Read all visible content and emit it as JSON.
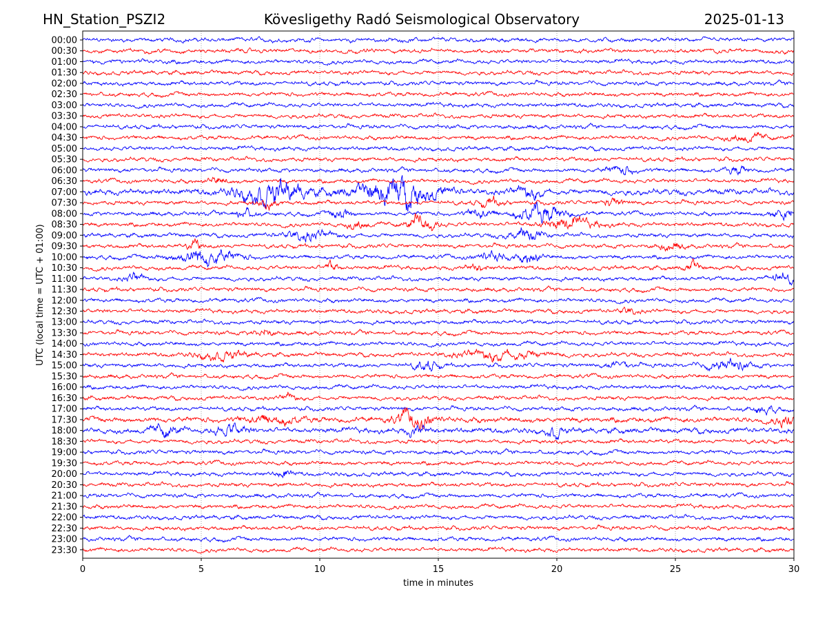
{
  "chart_data": {
    "type": "line",
    "title_left": "HN_Station_PSZI2",
    "title": "Kövesligethy Radó Seismological Observatory",
    "title_right": "2025-01-13",
    "xlabel": "time in minutes",
    "ylabel": "UTC (local time = UTC + 01:00)",
    "xlim": [
      0,
      30
    ],
    "xticks": [
      "0",
      "5",
      "10",
      "15",
      "20",
      "25",
      "30"
    ],
    "grid": "vertical dotted at x ticks",
    "colors": [
      "#0000ff",
      "#ff0000"
    ],
    "traces": [
      {
        "label": "00:00",
        "events": []
      },
      {
        "label": "00:30",
        "events": []
      },
      {
        "label": "01:00",
        "events": []
      },
      {
        "label": "01:30",
        "events": []
      },
      {
        "label": "02:00",
        "events": []
      },
      {
        "label": "02:30",
        "events": []
      },
      {
        "label": "03:00",
        "events": []
      },
      {
        "label": "03:30",
        "events": []
      },
      {
        "label": "04:00",
        "events": []
      },
      {
        "label": "04:30",
        "events": [
          [
            28,
            1.5,
            0.8
          ]
        ]
      },
      {
        "label": "05:00",
        "events": []
      },
      {
        "label": "05:30",
        "events": []
      },
      {
        "label": "06:00",
        "events": [
          [
            22.7,
            1.8,
            0.6
          ],
          [
            27.6,
            1.8,
            0.4
          ]
        ]
      },
      {
        "label": "06:30",
        "events": [
          [
            5.7,
            1.5,
            0.4
          ]
        ]
      },
      {
        "label": "07:00",
        "events": [
          [
            8.0,
            3.5,
            1.5
          ],
          [
            13.3,
            4.5,
            1.6
          ],
          [
            18.8,
            1.8,
            0.6
          ]
        ],
        "base": 1.4
      },
      {
        "label": "07:30",
        "events": [
          [
            7.8,
            2,
            0.4
          ],
          [
            17.2,
            2,
            0.5
          ],
          [
            22.4,
            1.6,
            0.4
          ]
        ]
      },
      {
        "label": "08:00",
        "events": [
          [
            6.8,
            2.2,
            0.4
          ],
          [
            10.9,
            2.5,
            0.4
          ],
          [
            16.7,
            2.2,
            0.5
          ],
          [
            19.3,
            4,
            1.0
          ],
          [
            29.6,
            2.8,
            0.5
          ]
        ]
      },
      {
        "label": "08:30",
        "events": [
          [
            11.6,
            2,
            0.4
          ],
          [
            14.3,
            3.6,
            0.6
          ],
          [
            20.5,
            2.4,
            1.2
          ]
        ]
      },
      {
        "label": "09:00",
        "events": [
          [
            9.5,
            2.3,
            1.0
          ],
          [
            18.6,
            2.8,
            0.7
          ]
        ]
      },
      {
        "label": "09:30",
        "events": [
          [
            4.7,
            2.4,
            0.3
          ],
          [
            24.8,
            1.6,
            0.5
          ]
        ]
      },
      {
        "label": "10:00",
        "events": [
          [
            5.2,
            4,
            1.2
          ],
          [
            17.3,
            2.4,
            0.6
          ],
          [
            18.9,
            2.8,
            0.4
          ]
        ]
      },
      {
        "label": "10:30",
        "events": [
          [
            10.5,
            2.4,
            0.3
          ],
          [
            16.6,
            1.5,
            0.4
          ],
          [
            25.7,
            2.6,
            0.3
          ]
        ]
      },
      {
        "label": "11:00",
        "events": [
          [
            2.2,
            2.2,
            0.4
          ],
          [
            29.5,
            2.2,
            0.6
          ]
        ]
      },
      {
        "label": "11:30",
        "events": []
      },
      {
        "label": "12:00",
        "events": []
      },
      {
        "label": "12:30",
        "events": [
          [
            23,
            1.4,
            0.4
          ]
        ]
      },
      {
        "label": "13:00",
        "events": []
      },
      {
        "label": "13:30",
        "events": [
          [
            7.6,
            1.6,
            0.4
          ]
        ]
      },
      {
        "label": "14:00",
        "events": []
      },
      {
        "label": "14:30",
        "events": [
          [
            5.8,
            1.8,
            1.0
          ],
          [
            17.7,
            2.2,
            1.8
          ]
        ]
      },
      {
        "label": "15:00",
        "events": [
          [
            14.5,
            2.2,
            0.5
          ],
          [
            22.6,
            1.8,
            0.4
          ],
          [
            27.2,
            2.4,
            0.9
          ]
        ]
      },
      {
        "label": "15:30",
        "events": []
      },
      {
        "label": "16:00",
        "events": []
      },
      {
        "label": "16:30",
        "events": [
          [
            8.7,
            1.8,
            0.3
          ]
        ]
      },
      {
        "label": "17:00",
        "events": [
          [
            28.7,
            1.8,
            0.5
          ]
        ]
      },
      {
        "label": "17:30",
        "events": [
          [
            8,
            1.6,
            1.0
          ],
          [
            14,
            2.6,
            0.8
          ],
          [
            29.7,
            2.2,
            0.4
          ]
        ],
        "base": 1.3
      },
      {
        "label": "18:00",
        "events": [
          [
            3.5,
            2,
            0.5
          ],
          [
            6.2,
            2,
            0.6
          ],
          [
            14.1,
            1.8,
            0.4
          ],
          [
            19.9,
            2,
            0.3
          ]
        ],
        "base": 1.3
      },
      {
        "label": "18:30",
        "events": []
      },
      {
        "label": "19:00",
        "events": []
      },
      {
        "label": "19:30",
        "events": []
      },
      {
        "label": "20:00",
        "events": [
          [
            8.5,
            2,
            0.3
          ]
        ]
      },
      {
        "label": "20:30",
        "events": []
      },
      {
        "label": "21:00",
        "events": []
      },
      {
        "label": "21:30",
        "events": []
      },
      {
        "label": "22:00",
        "events": []
      },
      {
        "label": "22:30",
        "events": []
      },
      {
        "label": "23:00",
        "events": []
      },
      {
        "label": "23:30",
        "events": []
      }
    ]
  }
}
